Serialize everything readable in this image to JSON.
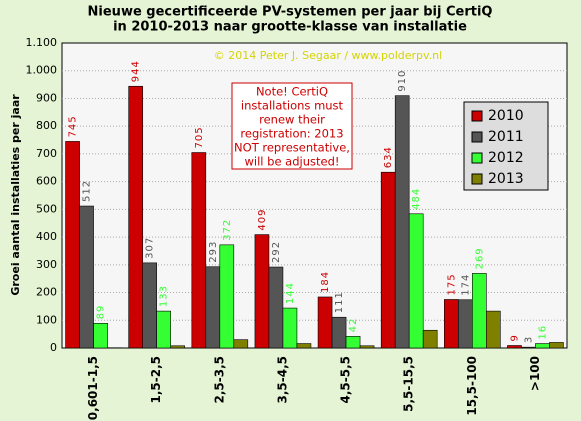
{
  "chart_data": {
    "type": "bar",
    "title": [
      "Nieuwe gecertificeerde PV-systemen per jaar bij CertiQ",
      "in 2010-2013 naar grootte-klasse van installatie"
    ],
    "subtitle": "© 2014 Peter J. Segaar / www.polderpv.nl",
    "annotation": [
      "Note! CertiQ",
      "installations  must",
      "renew their",
      "registration: 2013",
      "NOT representative,",
      "will be adjusted!"
    ],
    "y_label": "Groei aantal installaties per jaar",
    "categories": [
      "0,601-1,5",
      "1,5-2,5",
      "2,5-3,5",
      "3,5-4,5",
      "4,5-5,5",
      "5,5-15,5",
      "15,5-100",
      ">100"
    ],
    "series": [
      {
        "name": "2010",
        "color": "#cc0000",
        "labeled": true,
        "values": [
          745,
          944,
          705,
          409,
          184,
          634,
          175,
          9
        ]
      },
      {
        "name": "2011",
        "color": "#555555",
        "labeled": true,
        "values": [
          512,
          307,
          293,
          292,
          111,
          910,
          174,
          3
        ]
      },
      {
        "name": "2012",
        "color": "#33ff33",
        "labeled": true,
        "values": [
          89,
          133,
          372,
          144,
          42,
          484,
          269,
          16
        ]
      },
      {
        "name": "2013",
        "color": "#808000",
        "labeled": false,
        "values": [
          1,
          8,
          30,
          16,
          8,
          64,
          133,
          20
        ]
      }
    ],
    "ylim": [
      0,
      1100
    ],
    "yticks": [
      0,
      100,
      200,
      300,
      400,
      500,
      600,
      700,
      800,
      900,
      {
        "value": 1000,
        "label": "1.000"
      },
      {
        "value": 1100,
        "label": "1.100"
      }
    ],
    "grid": true,
    "legend": "right"
  }
}
